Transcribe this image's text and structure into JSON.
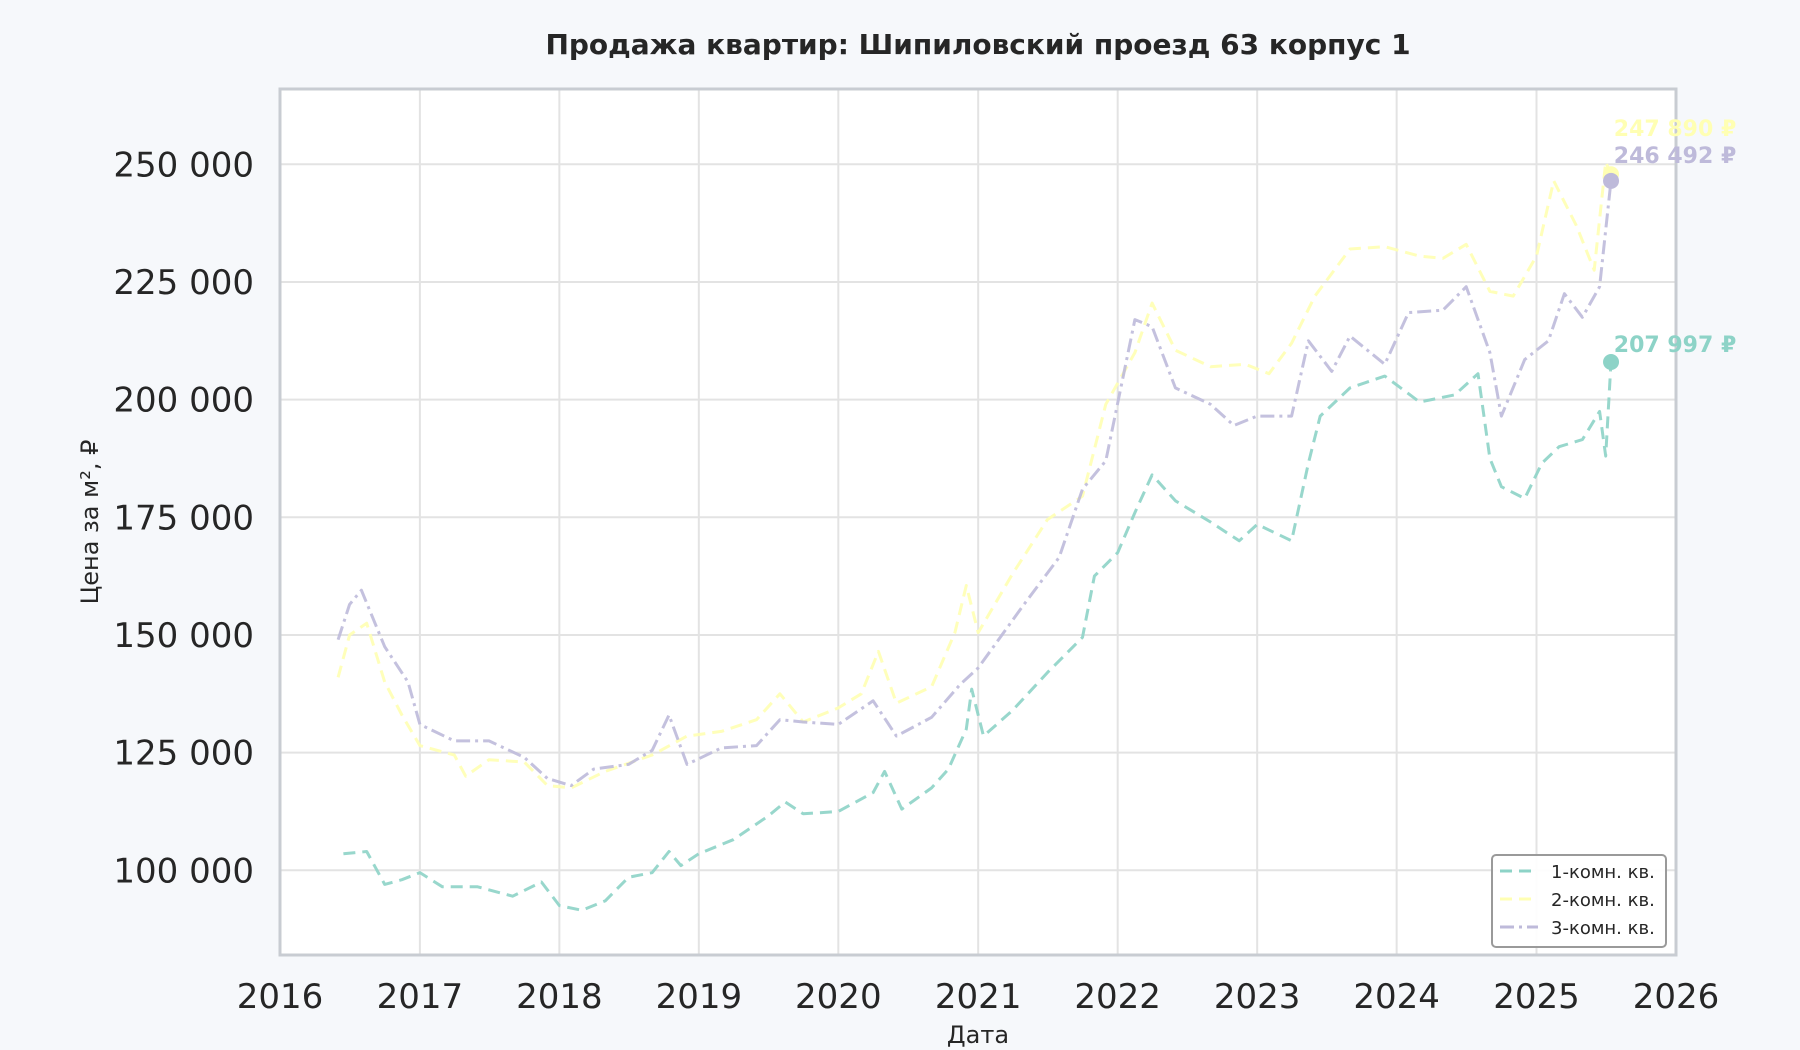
{
  "chart_data": {
    "type": "line",
    "title": "Продажа квартир: Шипиловский проезд 63 корпус 1",
    "xlabel": "Дата",
    "ylabel": "Цена за м², ₽",
    "xlim": [
      "2016-01-01",
      "2026-01-01"
    ],
    "ylim": [
      82000,
      266000
    ],
    "x_ticks": [
      "2016",
      "2017",
      "2018",
      "2019",
      "2020",
      "2021",
      "2022",
      "2023",
      "2024",
      "2025",
      "2026"
    ],
    "y_ticks": [
      100000,
      125000,
      150000,
      175000,
      200000,
      225000,
      250000
    ],
    "y_tick_labels": [
      "100 000",
      "125 000",
      "150 000",
      "175 000",
      "200 000",
      "225 000",
      "250 000"
    ],
    "grid": true,
    "legend_position": "bottom-right",
    "series": [
      {
        "name": "1-комн. кв.",
        "color": "#8dd3c7",
        "dash": "dashed",
        "end_label": "207 997 ₽",
        "points": [
          [
            "2016-06-15",
            103500
          ],
          [
            "2016-08-15",
            104000
          ],
          [
            "2016-10-01",
            97000
          ],
          [
            "2016-11-15",
            98000
          ],
          [
            "2017-01-01",
            99500
          ],
          [
            "2017-03-01",
            96500
          ],
          [
            "2017-06-01",
            96500
          ],
          [
            "2017-09-01",
            94500
          ],
          [
            "2017-11-15",
            97500
          ],
          [
            "2018-01-01",
            92500
          ],
          [
            "2018-03-01",
            91500
          ],
          [
            "2018-05-01",
            93500
          ],
          [
            "2018-07-01",
            98500
          ],
          [
            "2018-09-01",
            99500
          ],
          [
            "2018-10-15",
            104000
          ],
          [
            "2018-11-15",
            101000
          ],
          [
            "2019-01-01",
            103500
          ],
          [
            "2019-04-01",
            106500
          ],
          [
            "2019-07-01",
            111500
          ],
          [
            "2019-08-15",
            114500
          ],
          [
            "2019-10-01",
            112000
          ],
          [
            "2020-01-01",
            112500
          ],
          [
            "2020-04-01",
            116500
          ],
          [
            "2020-05-01",
            121000
          ],
          [
            "2020-06-15",
            113000
          ],
          [
            "2020-09-01",
            117500
          ],
          [
            "2020-10-15",
            121500
          ],
          [
            "2020-12-01",
            130000
          ],
          [
            "2020-12-15",
            138500
          ],
          [
            "2021-01-15",
            128500
          ],
          [
            "2021-04-01",
            134000
          ],
          [
            "2021-07-01",
            142000
          ],
          [
            "2021-10-01",
            149500
          ],
          [
            "2021-11-01",
            162500
          ],
          [
            "2022-01-01",
            167500
          ],
          [
            "2022-02-15",
            176000
          ],
          [
            "2022-04-01",
            184000
          ],
          [
            "2022-06-01",
            178500
          ],
          [
            "2022-09-01",
            174000
          ],
          [
            "2022-11-15",
            170000
          ],
          [
            "2023-01-01",
            173500
          ],
          [
            "2023-04-01",
            170000
          ],
          [
            "2023-05-15",
            186500
          ],
          [
            "2023-06-15",
            196500
          ],
          [
            "2023-09-01",
            202500
          ],
          [
            "2023-12-01",
            205000
          ],
          [
            "2024-03-01",
            199500
          ],
          [
            "2024-06-01",
            201000
          ],
          [
            "2024-08-01",
            205500
          ],
          [
            "2024-09-01",
            187500
          ],
          [
            "2024-10-01",
            181500
          ],
          [
            "2024-12-01",
            179000
          ],
          [
            "2025-01-15",
            186500
          ],
          [
            "2025-03-01",
            190000
          ],
          [
            "2025-05-01",
            191500
          ],
          [
            "2025-06-15",
            197500
          ],
          [
            "2025-07-01",
            188000
          ],
          [
            "2025-07-15",
            207997
          ]
        ]
      },
      {
        "name": "2-комн. кв.",
        "color": "#ffffb3",
        "dash": "dashed",
        "end_label": "247 890 ₽",
        "points": [
          [
            "2016-06-01",
            141000
          ],
          [
            "2016-07-01",
            150000
          ],
          [
            "2016-08-15",
            152500
          ],
          [
            "2016-10-01",
            140000
          ],
          [
            "2016-11-15",
            133000
          ],
          [
            "2017-01-01",
            126500
          ],
          [
            "2017-04-01",
            124500
          ],
          [
            "2017-05-01",
            120000
          ],
          [
            "2017-07-01",
            123500
          ],
          [
            "2017-10-01",
            123000
          ],
          [
            "2017-12-01",
            118000
          ],
          [
            "2018-02-01",
            117500
          ],
          [
            "2018-05-01",
            121000
          ],
          [
            "2018-09-01",
            124500
          ],
          [
            "2018-12-01",
            128500
          ],
          [
            "2019-03-01",
            129500
          ],
          [
            "2019-06-01",
            132000
          ],
          [
            "2019-08-01",
            137500
          ],
          [
            "2019-10-01",
            131500
          ],
          [
            "2020-01-01",
            134500
          ],
          [
            "2020-03-01",
            137500
          ],
          [
            "2020-04-15",
            146500
          ],
          [
            "2020-06-01",
            135500
          ],
          [
            "2020-09-01",
            139000
          ],
          [
            "2020-11-01",
            150500
          ],
          [
            "2020-12-01",
            160500
          ],
          [
            "2021-01-01",
            150500
          ],
          [
            "2021-04-01",
            163000
          ],
          [
            "2021-07-01",
            174500
          ],
          [
            "2021-10-01",
            179500
          ],
          [
            "2021-12-01",
            199000
          ],
          [
            "2022-02-15",
            210000
          ],
          [
            "2022-04-01",
            220500
          ],
          [
            "2022-06-01",
            210500
          ],
          [
            "2022-09-01",
            207000
          ],
          [
            "2022-12-01",
            207500
          ],
          [
            "2023-02-01",
            205500
          ],
          [
            "2023-04-01",
            212000
          ],
          [
            "2023-06-01",
            222000
          ],
          [
            "2023-09-01",
            232000
          ],
          [
            "2023-12-01",
            232500
          ],
          [
            "2024-03-01",
            230500
          ],
          [
            "2024-05-01",
            230000
          ],
          [
            "2024-07-01",
            233000
          ],
          [
            "2024-09-01",
            223000
          ],
          [
            "2024-11-01",
            222000
          ],
          [
            "2025-01-01",
            230500
          ],
          [
            "2025-02-15",
            246500
          ],
          [
            "2025-04-15",
            237000
          ],
          [
            "2025-06-01",
            227500
          ],
          [
            "2025-07-01",
            250500
          ],
          [
            "2025-07-15",
            247890
          ]
        ]
      },
      {
        "name": "3-комн. кв.",
        "color": "#bebada",
        "dash": "dashdot",
        "end_label": "246 492 ₽",
        "points": [
          [
            "2016-06-01",
            149000
          ],
          [
            "2016-07-01",
            156500
          ],
          [
            "2016-08-01",
            159500
          ],
          [
            "2016-10-01",
            147500
          ],
          [
            "2016-12-01",
            140000
          ],
          [
            "2017-01-01",
            131000
          ],
          [
            "2017-04-01",
            127500
          ],
          [
            "2017-07-01",
            127500
          ],
          [
            "2017-10-01",
            124000
          ],
          [
            "2017-12-01",
            119500
          ],
          [
            "2018-02-01",
            118000
          ],
          [
            "2018-04-01",
            121500
          ],
          [
            "2018-07-01",
            122500
          ],
          [
            "2018-09-01",
            125500
          ],
          [
            "2018-10-15",
            133000
          ],
          [
            "2018-12-01",
            122500
          ],
          [
            "2019-03-01",
            126000
          ],
          [
            "2019-06-01",
            126500
          ],
          [
            "2019-08-01",
            132000
          ],
          [
            "2019-10-01",
            131500
          ],
          [
            "2020-01-01",
            131000
          ],
          [
            "2020-04-01",
            136000
          ],
          [
            "2020-06-01",
            128500
          ],
          [
            "2020-09-01",
            132500
          ],
          [
            "2020-11-15",
            139500
          ],
          [
            "2021-01-01",
            143000
          ],
          [
            "2021-05-01",
            156500
          ],
          [
            "2021-08-01",
            166500
          ],
          [
            "2021-10-01",
            181000
          ],
          [
            "2021-12-01",
            187000
          ],
          [
            "2022-02-15",
            217000
          ],
          [
            "2022-04-01",
            215500
          ],
          [
            "2022-06-01",
            202500
          ],
          [
            "2022-09-01",
            199000
          ],
          [
            "2022-11-01",
            194500
          ],
          [
            "2023-01-01",
            196500
          ],
          [
            "2023-04-01",
            196500
          ],
          [
            "2023-05-15",
            212500
          ],
          [
            "2023-07-15",
            206000
          ],
          [
            "2023-09-01",
            213500
          ],
          [
            "2023-12-01",
            207500
          ],
          [
            "2024-02-01",
            218500
          ],
          [
            "2024-05-01",
            219000
          ],
          [
            "2024-07-01",
            224000
          ],
          [
            "2024-09-01",
            210000
          ],
          [
            "2024-10-01",
            196500
          ],
          [
            "2024-12-01",
            208500
          ],
          [
            "2025-02-01",
            212500
          ],
          [
            "2025-03-15",
            222500
          ],
          [
            "2025-05-01",
            217500
          ],
          [
            "2025-06-15",
            224000
          ],
          [
            "2025-07-15",
            246492
          ]
        ]
      }
    ]
  }
}
